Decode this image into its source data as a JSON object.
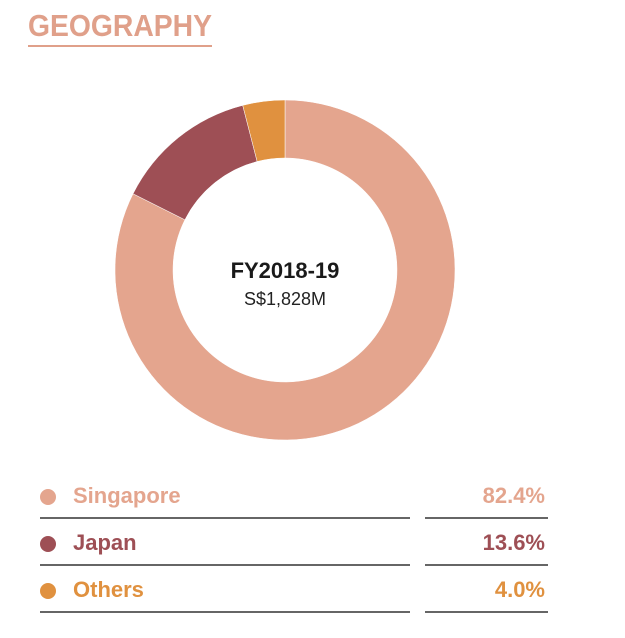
{
  "chart_data": {
    "type": "pie",
    "donut": true,
    "title": "GEOGRAPHY",
    "center_title": "FY2018-19",
    "center_subtitle": "S$1,828M",
    "categories": [
      "Singapore",
      "Japan",
      "Others"
    ],
    "values": [
      82.4,
      13.6,
      4.0
    ],
    "value_labels": [
      "82.4%",
      "13.6%",
      "4.0%"
    ],
    "colors": [
      "#e4a58e",
      "#9e4f55",
      "#e0913f"
    ]
  }
}
